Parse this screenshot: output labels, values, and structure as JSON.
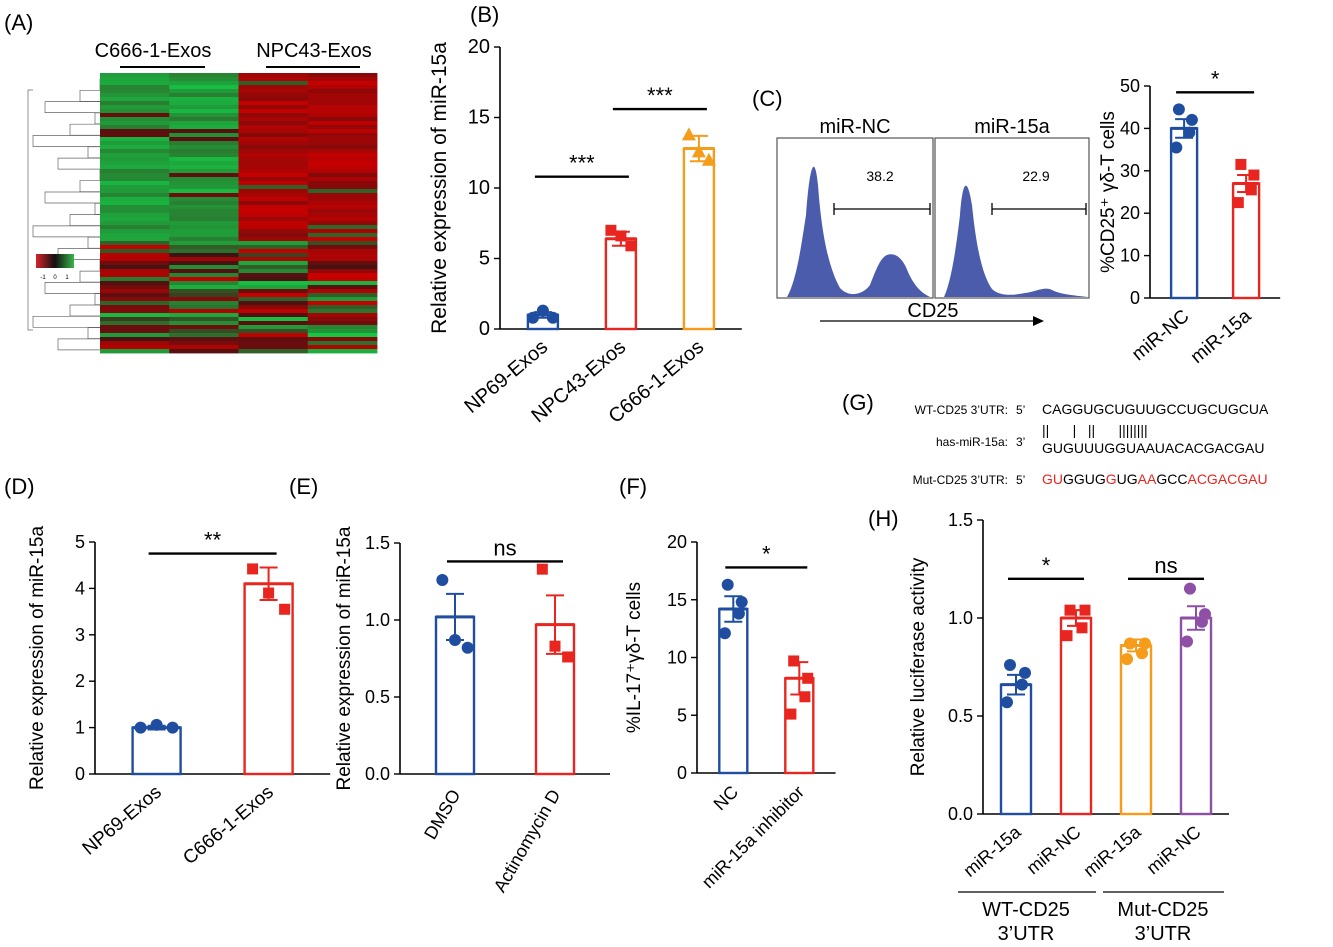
{
  "colors": {
    "blue": "#1f4ea1",
    "red": "#e8261f",
    "orange": "#f59c1a",
    "purple": "#8e4fa6",
    "flow_fill": "#4a5cab",
    "seq_red": "#e8261f"
  },
  "heatmap": {
    "panel_label": "(A)",
    "group_labels": [
      "C666-1-Exos",
      "NPC43-Exos"
    ],
    "legend_ticks": [
      "-1",
      "0",
      "1"
    ]
  },
  "flow": {
    "panel_label": "(C)",
    "left_title": "miR-NC",
    "left_value": "38.2",
    "right_title": "miR-15a",
    "right_value": "22.9",
    "xlabel": "CD25"
  },
  "sequence": {
    "panel_label": "(G)",
    "wt_label": "WT-CD25 3’UTR:",
    "wt_end": "5’",
    "wt_seq": "CAGGUGCUGUUGCCUGCUGCUA",
    "pair_marks": "||      |   ||      ||||||||",
    "mir_label": "has-miR-15a:",
    "mir_end": "3’",
    "mir_seq": "GUGUUUGGUAAUACACGACGAU",
    "mut_label": "Mut-CD25 3’UTR:",
    "mut_end": "5’",
    "mut_segments": [
      {
        "t": "GU",
        "red": true
      },
      {
        "t": "GGUG",
        "red": false
      },
      {
        "t": "G",
        "red": true
      },
      {
        "t": "UG",
        "red": false
      },
      {
        "t": "AA",
        "red": true
      },
      {
        "t": "GCC",
        "red": false
      },
      {
        "t": "ACGACGAU",
        "red": true
      }
    ]
  },
  "h_groups": {
    "wt_line1": "WT-CD25",
    "wt_line2": "3’UTR",
    "mut_line1": "Mut-CD25",
    "mut_line2": "3’UTR"
  },
  "chart_data": [
    {
      "id": "B",
      "type": "bar",
      "panel_label": "(B)",
      "ylabel": "Relative expression of miR-15a",
      "ylim": [
        0,
        20
      ],
      "yticks": [
        "0",
        "5",
        "10",
        "15",
        "20"
      ],
      "categories": [
        "NP69-Exos",
        "NPC43-Exos",
        "C666-1-Exos"
      ],
      "values": [
        1.0,
        6.4,
        12.8
      ],
      "errors": [
        0.2,
        0.5,
        0.9
      ],
      "points": [
        [
          0.8,
          1.3,
          0.8
        ],
        [
          7.0,
          6.6,
          5.9
        ],
        [
          13.8,
          12.6,
          12.0
        ]
      ],
      "colors": [
        "blue",
        "red",
        "orange"
      ],
      "markers": [
        "circle",
        "square",
        "triangle"
      ],
      "sig": [
        {
          "from": 0,
          "to": 1,
          "label": "***",
          "y": 10.8
        },
        {
          "from": 1,
          "to": 2,
          "label": "***",
          "y": 15.6
        }
      ]
    },
    {
      "id": "C",
      "type": "bar",
      "panel_label": "",
      "ylabel": "%CD25⁺ γδ-T cells",
      "ylim": [
        0,
        50
      ],
      "yticks": [
        "0",
        "10",
        "20",
        "30",
        "40",
        "50"
      ],
      "categories": [
        "miR-NC",
        "miR-15a"
      ],
      "values": [
        40.0,
        27.0
      ],
      "errors": [
        2.2,
        2.0
      ],
      "points": [
        [
          44.5,
          42.0,
          39.0,
          35.5
        ],
        [
          31.5,
          29.0,
          25.5,
          22.5
        ]
      ],
      "colors": [
        "blue",
        "red"
      ],
      "markers": [
        "circle",
        "square"
      ],
      "sig": [
        {
          "from": 0,
          "to": 1,
          "label": "*",
          "y": 48.5
        }
      ]
    },
    {
      "id": "D",
      "type": "bar",
      "panel_label": "(D)",
      "ylabel": "Relative expression of miR-15a",
      "ylim": [
        0,
        5
      ],
      "yticks": [
        "0",
        "1",
        "2",
        "3",
        "4",
        "5"
      ],
      "categories": [
        "NP69-Exos",
        "C666-1-Exos"
      ],
      "values": [
        1.0,
        4.1
      ],
      "errors": [
        0.04,
        0.35
      ],
      "points": [
        [
          1.0,
          1.06,
          1.0
        ],
        [
          4.42,
          3.9,
          3.55
        ]
      ],
      "colors": [
        "blue",
        "red"
      ],
      "markers": [
        "circle",
        "square"
      ],
      "sig": [
        {
          "from": 0,
          "to": 1,
          "label": "**",
          "y": 4.75
        }
      ]
    },
    {
      "id": "E",
      "type": "bar",
      "panel_label": "(E)",
      "ylabel": "Relative expression of miR-15a",
      "ylim": [
        0,
        1.5
      ],
      "yticks": [
        "0.0",
        "0.5",
        "1.0",
        "1.5"
      ],
      "categories": [
        "DMSO",
        "Actinomycin D"
      ],
      "values": [
        1.02,
        0.97
      ],
      "errors": [
        0.15,
        0.19
      ],
      "points": [
        [
          1.26,
          0.87,
          0.82
        ],
        [
          1.33,
          0.83,
          0.76
        ]
      ],
      "colors": [
        "blue",
        "red"
      ],
      "markers": [
        "circle",
        "square"
      ],
      "sig": [
        {
          "from": 0,
          "to": 1,
          "label": "ns",
          "y": 1.38
        }
      ]
    },
    {
      "id": "F",
      "type": "bar",
      "panel_label": "(F)",
      "ylabel": "%IL-17⁺γδ-T cells",
      "ylim": [
        0,
        20
      ],
      "yticks": [
        "0",
        "5",
        "10",
        "15",
        "20"
      ],
      "categories": [
        "NC",
        "miR-15a inhibitor"
      ],
      "values": [
        14.2,
        8.2
      ],
      "errors": [
        1.1,
        1.4
      ],
      "points": [
        [
          16.3,
          14.8,
          13.8,
          12.1
        ],
        [
          9.7,
          8.2,
          6.6,
          5.1
        ]
      ],
      "colors": [
        "blue",
        "red"
      ],
      "markers": [
        "circle",
        "square"
      ],
      "sig": [
        {
          "from": 0,
          "to": 1,
          "label": "*",
          "y": 17.8
        }
      ]
    },
    {
      "id": "H",
      "type": "bar",
      "panel_label": "(H)",
      "ylabel": "Relative luciferase activity",
      "ylim": [
        0,
        1.5
      ],
      "yticks": [
        "0.0",
        "0.5",
        "1.0",
        "1.5"
      ],
      "categories": [
        "miR-15a",
        "miR-NC",
        "miR-15a",
        "miR-NC"
      ],
      "values": [
        0.66,
        1.0,
        0.86,
        1.0
      ],
      "errors": [
        0.05,
        0.04,
        0.03,
        0.06
      ],
      "points": [
        [
          0.76,
          0.72,
          0.66,
          0.57
        ],
        [
          1.04,
          1.04,
          0.95,
          0.91
        ],
        [
          0.87,
          0.87,
          0.82,
          0.79
        ],
        [
          1.15,
          1.02,
          0.98,
          0.88
        ]
      ],
      "colors": [
        "blue",
        "red",
        "orange",
        "purple"
      ],
      "markers": [
        "circle",
        "square",
        "circle",
        "circle"
      ],
      "sig": [
        {
          "from": 0,
          "to": 1,
          "label": "*",
          "y": 1.2
        },
        {
          "from": 2,
          "to": 3,
          "label": "ns",
          "y": 1.2
        }
      ]
    }
  ]
}
